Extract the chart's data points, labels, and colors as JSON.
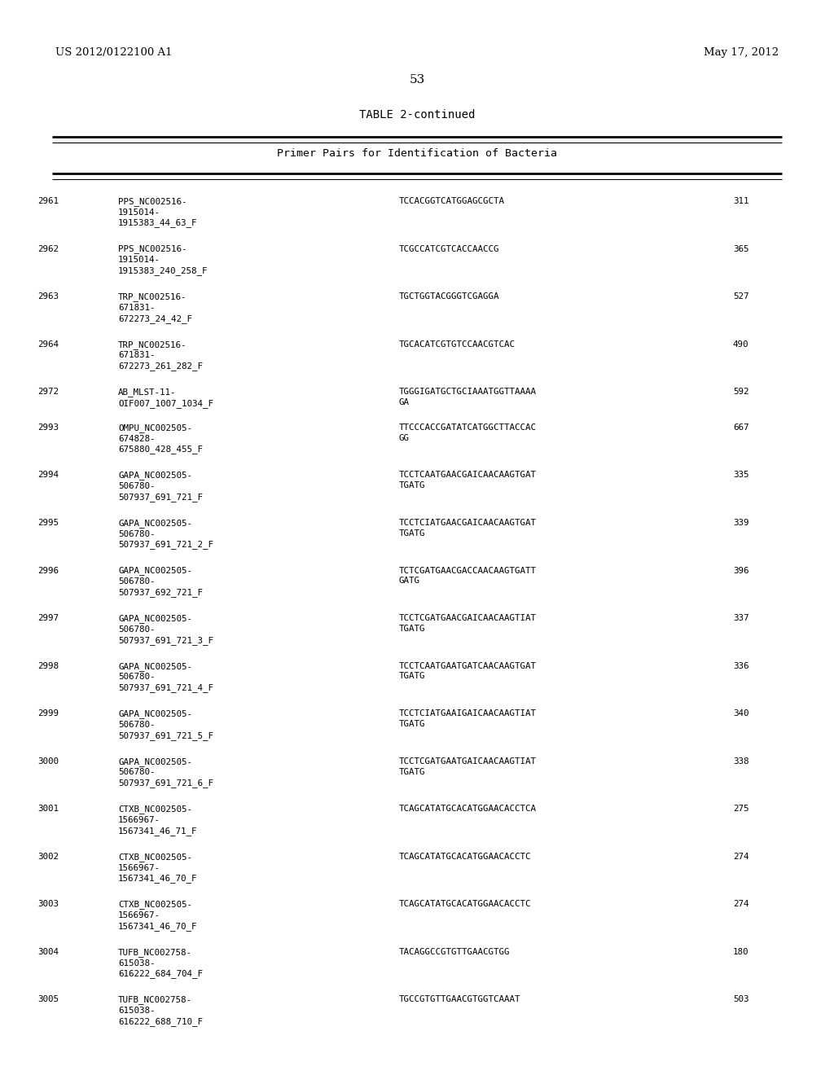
{
  "header_left": "US 2012/0122100 A1",
  "header_right": "May 17, 2012",
  "page_number": "53",
  "table_title": "TABLE 2-continued",
  "table_subtitle": "Primer Pairs for Identification of Bacteria",
  "background_color": "#ffffff",
  "text_color": "#000000",
  "rows": [
    {
      "num": "2961",
      "name": "PPS_NC002516-\n1915014-\n1915383_44_63_F",
      "sequence": "TCCACGGTCATGGAGCGCTA",
      "size": "311"
    },
    {
      "num": "2962",
      "name": "PPS_NC002516-\n1915014-\n1915383_240_258_F",
      "sequence": "TCGCCATCGTCACCAACCG",
      "size": "365"
    },
    {
      "num": "2963",
      "name": "TRP_NC002516-\n671831-\n672273_24_42_F",
      "sequence": "TGCTGGTACGGGTCGAGGA",
      "size": "527"
    },
    {
      "num": "2964",
      "name": "TRP_NC002516-\n671831-\n672273_261_282_F",
      "sequence": "TGCACATCGTGTCCAACGTCAC",
      "size": "490"
    },
    {
      "num": "2972",
      "name": "AB_MLST-11-\nOIF007_1007_1034_F",
      "sequence": "TGGGIGATGCTGCIAAATGGTTAAAA\nGA",
      "size": "592"
    },
    {
      "num": "2993",
      "name": "OMPU_NC002505-\n674828-\n675880_428_455_F",
      "sequence": "TTCCCACCGATATCATGGCTTACCAC\nGG",
      "size": "667"
    },
    {
      "num": "2994",
      "name": "GAPA_NC002505-\n506780-\n507937_691_721_F",
      "sequence": "TCCTCAATGAACGAICAACAAGTGAT\nTGATG",
      "size": "335"
    },
    {
      "num": "2995",
      "name": "GAPA_NC002505-\n506780-\n507937_691_721_2_F",
      "sequence": "TCCTCIATGAACGAICAACAAGTGAT\nTGATG",
      "size": "339"
    },
    {
      "num": "2996",
      "name": "GAPA_NC002505-\n506780-\n507937_692_721_F",
      "sequence": "TCTCGATGAACGACCAACAAGTGATT\nGATG",
      "size": "396"
    },
    {
      "num": "2997",
      "name": "GAPA_NC002505-\n506780-\n507937_691_721_3_F",
      "sequence": "TCCTCGATGAACGAICAACAAGTIAT\nTGATG",
      "size": "337"
    },
    {
      "num": "2998",
      "name": "GAPA_NC002505-\n506780-\n507937_691_721_4_F",
      "sequence": "TCCTCAATGAATGATCAACAAGTGAT\nTGATG",
      "size": "336"
    },
    {
      "num": "2999",
      "name": "GAPA_NC002505-\n506780-\n507937_691_721_5_F",
      "sequence": "TCCTCIATGAAIGAICAACAAGTIAT\nTGATG",
      "size": "340"
    },
    {
      "num": "3000",
      "name": "GAPA_NC002505-\n506780-\n507937_691_721_6_F",
      "sequence": "TCCTCGATGAATGAICAACAAGTIAT\nTGATG",
      "size": "338"
    },
    {
      "num": "3001",
      "name": "CTXB_NC002505-\n1566967-\n1567341_46_71_F",
      "sequence": "TCAGCATATGCACATGGAACACCTCA",
      "size": "275"
    },
    {
      "num": "3002",
      "name": "CTXB_NC002505-\n1566967-\n1567341_46_70_F",
      "sequence": "TCAGCATATGCACATGGAACACCTC",
      "size": "274"
    },
    {
      "num": "3003",
      "name": "CTXB_NC002505-\n1566967-\n1567341_46_70_F",
      "sequence": "TCAGCATATGCACATGGAACACCTC",
      "size": "274"
    },
    {
      "num": "3004",
      "name": "TUFB_NC002758-\n615038-\n616222_684_704_F",
      "sequence": "TACAGGCCGTGTTGAACGTGG",
      "size": "180"
    },
    {
      "num": "3005",
      "name": "TUFB_NC002758-\n615038-\n616222_688_710_F",
      "sequence": "TGCCGTGTTGAACGTGGTCAAAT",
      "size": "503"
    }
  ]
}
